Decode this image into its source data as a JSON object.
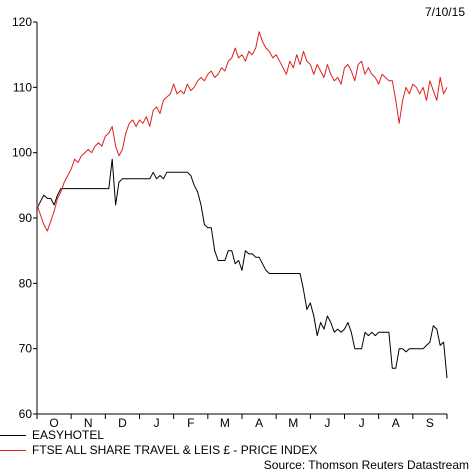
{
  "date_label": "7/10/15",
  "source": "Source: Thomson Reuters Datastream",
  "chart_data": {
    "type": "line",
    "ylim": [
      60,
      120
    ],
    "yticks": [
      60,
      70,
      80,
      90,
      100,
      110,
      120
    ],
    "months": [
      "O",
      "N",
      "D",
      "J",
      "F",
      "M",
      "A",
      "M",
      "J",
      "J",
      "A",
      "S"
    ],
    "grid": false,
    "legend_position": "bottom-left",
    "series": [
      {
        "name": "EASYHOTEL",
        "color": "#000000",
        "values": [
          91.5,
          92.5,
          93.5,
          93.0,
          93.0,
          92.0,
          93.5,
          94.5,
          94.5,
          94.5,
          94.5,
          94.5,
          94.5,
          94.5,
          94.5,
          94.5,
          94.5,
          94.5,
          94.5,
          94.5,
          94.5,
          94.5,
          99.0,
          92.0,
          95.5,
          96.0,
          96.0,
          96.0,
          96.0,
          96.0,
          96.0,
          96.0,
          96.0,
          96.0,
          97.0,
          96.0,
          96.5,
          96.0,
          97.0,
          97.0,
          97.0,
          97.0,
          97.0,
          97.0,
          97.0,
          96.5,
          95.0,
          94.0,
          92.0,
          89.0,
          88.5,
          88.5,
          85.0,
          83.5,
          83.5,
          83.5,
          85.0,
          85.0,
          83.0,
          83.5,
          82.0,
          85.0,
          84.5,
          84.5,
          84.0,
          84.0,
          83.0,
          82.0,
          81.5,
          81.5,
          81.5,
          81.5,
          81.5,
          81.5,
          81.5,
          81.5,
          81.5,
          81.5,
          79.0,
          76.0,
          77.0,
          75.0,
          72.0,
          74.0,
          73.0,
          75.0,
          74.0,
          72.5,
          73.0,
          72.5,
          73.0,
          74.0,
          72.5,
          70.0,
          70.0,
          70.0,
          72.5,
          72.0,
          72.5,
          72.0,
          72.5,
          72.5,
          72.5,
          72.5,
          67.0,
          67.0,
          70.0,
          70.0,
          69.5,
          70.0,
          70.0,
          70.0,
          70.0,
          70.0,
          70.5,
          71.0,
          73.5,
          73.0,
          70.5,
          71.0,
          65.5
        ]
      },
      {
        "name": "FTSE ALL SHARE TRAVEL & LEIS £ - PRICE INDEX",
        "color": "#e02020",
        "values": [
          92.0,
          90.5,
          89.0,
          88.0,
          89.5,
          91.0,
          93.0,
          94.0,
          95.5,
          96.5,
          97.5,
          99.0,
          98.5,
          99.5,
          100.0,
          100.5,
          100.0,
          101.0,
          101.5,
          101.0,
          102.5,
          103.0,
          104.0,
          101.0,
          99.5,
          100.5,
          103.0,
          104.5,
          105.0,
          104.0,
          105.0,
          104.5,
          105.5,
          104.0,
          106.5,
          107.0,
          106.0,
          108.0,
          108.5,
          109.0,
          110.5,
          109.0,
          109.5,
          109.0,
          110.5,
          109.5,
          110.0,
          111.0,
          111.5,
          111.0,
          112.0,
          112.5,
          111.5,
          112.0,
          113.0,
          112.5,
          114.0,
          114.5,
          116.0,
          114.5,
          115.0,
          114.0,
          115.5,
          115.0,
          116.0,
          118.5,
          117.0,
          116.0,
          115.5,
          114.5,
          115.0,
          114.0,
          113.0,
          112.0,
          114.0,
          113.0,
          115.0,
          113.5,
          115.5,
          114.0,
          113.5,
          112.0,
          113.5,
          112.5,
          111.5,
          113.5,
          112.0,
          111.0,
          111.5,
          110.5,
          113.0,
          113.5,
          112.5,
          111.0,
          113.5,
          114.0,
          112.0,
          113.0,
          112.0,
          111.5,
          110.5,
          112.0,
          111.5,
          111.0,
          111.0,
          108.0,
          104.5,
          108.0,
          110.0,
          109.0,
          110.5,
          110.0,
          109.0,
          110.0,
          108.0,
          111.0,
          109.5,
          108.0,
          111.5,
          109.0,
          110.0
        ]
      }
    ]
  }
}
